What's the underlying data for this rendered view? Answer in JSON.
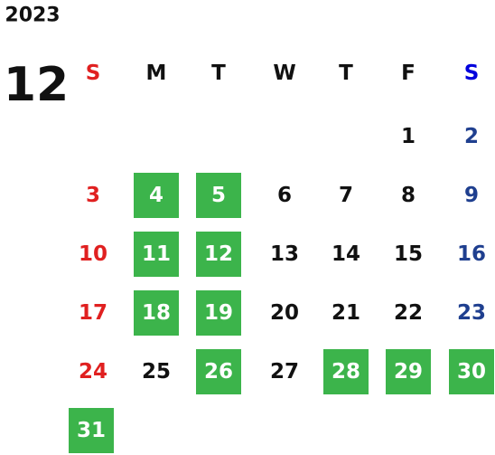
{
  "year": "2023",
  "month": "12",
  "weekdays": [
    "S",
    "M",
    "T",
    "W",
    "T",
    "F",
    "S"
  ],
  "weeks": [
    [
      null,
      null,
      null,
      null,
      null,
      {
        "day": 1,
        "marked": false
      },
      {
        "day": 2,
        "marked": false
      }
    ],
    [
      {
        "day": 3,
        "marked": false
      },
      {
        "day": 4,
        "marked": true
      },
      {
        "day": 5,
        "marked": true
      },
      {
        "day": 6,
        "marked": false
      },
      {
        "day": 7,
        "marked": false
      },
      {
        "day": 8,
        "marked": false
      },
      {
        "day": 9,
        "marked": false
      }
    ],
    [
      {
        "day": 10,
        "marked": false
      },
      {
        "day": 11,
        "marked": true
      },
      {
        "day": 12,
        "marked": true
      },
      {
        "day": 13,
        "marked": false
      },
      {
        "day": 14,
        "marked": false
      },
      {
        "day": 15,
        "marked": false
      },
      {
        "day": 16,
        "marked": false
      }
    ],
    [
      {
        "day": 17,
        "marked": false
      },
      {
        "day": 18,
        "marked": true
      },
      {
        "day": 19,
        "marked": true
      },
      {
        "day": 20,
        "marked": false
      },
      {
        "day": 21,
        "marked": false
      },
      {
        "day": 22,
        "marked": false
      },
      {
        "day": 23,
        "marked": false
      }
    ],
    [
      {
        "day": 24,
        "marked": false
      },
      {
        "day": 25,
        "marked": false
      },
      {
        "day": 26,
        "marked": true
      },
      {
        "day": 27,
        "marked": false
      },
      {
        "day": 28,
        "marked": true
      },
      {
        "day": 29,
        "marked": true
      },
      {
        "day": 30,
        "marked": true
      }
    ],
    [
      {
        "day": 31,
        "marked": true
      },
      null,
      null,
      null,
      null,
      null,
      null
    ]
  ]
}
